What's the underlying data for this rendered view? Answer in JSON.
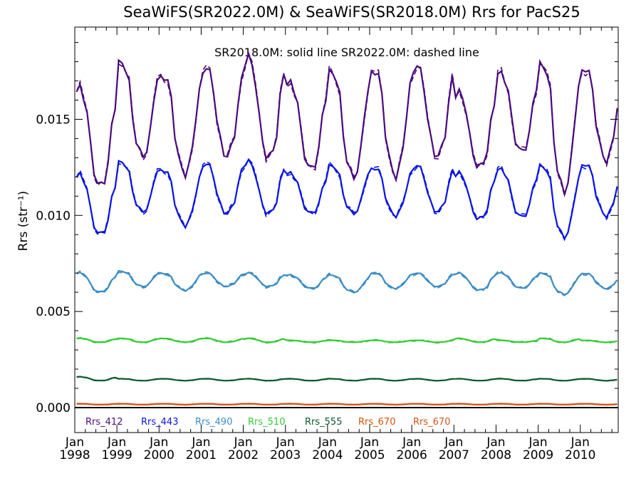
{
  "chart_data": {
    "type": "line",
    "title": "SeaWiFS(SR2022.0M) & SeaWiFS(SR2018.0M)  Rrs for PacS25",
    "subtitle": "SR2018.0M: solid line   SR2022.0M: dashed line",
    "ylabel": "Rrs (str⁻¹)",
    "xlabel": "",
    "xlim": [
      1998.0,
      2010.9
    ],
    "ylim": [
      -0.0013,
      0.0198
    ],
    "yticks": [
      {
        "value": 0.0,
        "label": "0.000"
      },
      {
        "value": 0.005,
        "label": "0.005"
      },
      {
        "value": 0.01,
        "label": "0.010"
      },
      {
        "value": 0.015,
        "label": "0.015"
      }
    ],
    "xticks": [
      {
        "value": 1998,
        "month": "Jan",
        "year": "1998"
      },
      {
        "value": 1999,
        "month": "Jan",
        "year": "1999"
      },
      {
        "value": 2000,
        "month": "Jan",
        "year": "2000"
      },
      {
        "value": 2001,
        "month": "Jan",
        "year": "2001"
      },
      {
        "value": 2002,
        "month": "Jan",
        "year": "2002"
      },
      {
        "value": 2003,
        "month": "Jan",
        "year": "2003"
      },
      {
        "value": 2004,
        "month": "Jan",
        "year": "2004"
      },
      {
        "value": 2005,
        "month": "Jan",
        "year": "2005"
      },
      {
        "value": 2006,
        "month": "Jan",
        "year": "2006"
      },
      {
        "value": 2007,
        "month": "Jan",
        "year": "2007"
      },
      {
        "value": 2008,
        "month": "Jan",
        "year": "2008"
      },
      {
        "value": 2009,
        "month": "Jan",
        "year": "2009"
      },
      {
        "value": 2010,
        "month": "Jan",
        "year": "2010"
      }
    ],
    "grid": false,
    "zero_line": true,
    "legend_placement": "bottom, inside plot",
    "series": [
      {
        "name": "Rrs_412",
        "color": "#4b0a7d",
        "peaks": [
          0.0166,
          0.018,
          0.0173,
          0.0177,
          0.0182,
          0.0169,
          0.0175,
          0.0176,
          0.0178,
          0.0164,
          0.0174,
          0.0179,
          0.0177
        ],
        "troughs": [
          0.0115,
          0.0131,
          0.0122,
          0.0131,
          0.013,
          0.0124,
          0.012,
          0.0121,
          0.0131,
          0.0125,
          0.0133,
          0.0113,
          0.0129
        ]
      },
      {
        "name": "Rrs_443",
        "color": "#0a14e6",
        "peaks": [
          0.0121,
          0.0128,
          0.0124,
          0.0127,
          0.0128,
          0.0122,
          0.0126,
          0.0125,
          0.0126,
          0.0122,
          0.0124,
          0.0126,
          0.0127
        ],
        "troughs": [
          0.009,
          0.0102,
          0.0095,
          0.0101,
          0.0101,
          0.0101,
          0.0101,
          0.01,
          0.0102,
          0.0098,
          0.0099,
          0.0089,
          0.01
        ]
      },
      {
        "name": "Rrs_490",
        "color": "#3a8dc6",
        "peaks": [
          0.007,
          0.0071,
          0.007,
          0.007,
          0.007,
          0.0069,
          0.0069,
          0.007,
          0.007,
          0.007,
          0.007,
          0.007,
          0.007
        ],
        "troughs": [
          0.006,
          0.0063,
          0.0061,
          0.0063,
          0.0063,
          0.0062,
          0.006,
          0.0062,
          0.0063,
          0.0061,
          0.0062,
          0.0059,
          0.0062
        ]
      },
      {
        "name": "Rrs_510",
        "color": "#33cc33",
        "peaks": [
          0.0036,
          0.0036,
          0.0036,
          0.0036,
          0.0036,
          0.0035,
          0.0035,
          0.0035,
          0.0035,
          0.0036,
          0.0035,
          0.0036,
          0.0035
        ],
        "troughs": [
          0.0034,
          0.0034,
          0.0034,
          0.0034,
          0.0034,
          0.0034,
          0.0034,
          0.0034,
          0.0034,
          0.0034,
          0.0034,
          0.0034,
          0.0034
        ]
      },
      {
        "name": "Rrs_555",
        "color": "#0a5a2d",
        "peaks": [
          0.0016,
          0.0015,
          0.0015,
          0.0015,
          0.0015,
          0.0015,
          0.0015,
          0.0015,
          0.0015,
          0.0015,
          0.0015,
          0.0015,
          0.0015
        ],
        "troughs": [
          0.0014,
          0.0014,
          0.0014,
          0.0014,
          0.0014,
          0.0014,
          0.0014,
          0.0014,
          0.0014,
          0.0014,
          0.0014,
          0.0014,
          0.0014
        ]
      },
      {
        "name": "Rrs_670",
        "color": "#d35400",
        "peaks": [
          0.0002,
          0.0002,
          0.0002,
          0.0002,
          0.0002,
          0.0002,
          0.0002,
          0.0002,
          0.0002,
          0.0002,
          0.0002,
          0.0002,
          0.0002
        ],
        "troughs": [
          0.00015,
          0.00015,
          0.00015,
          0.00015,
          0.00015,
          0.00015,
          0.00015,
          0.00015,
          0.00015,
          0.00015,
          0.00015,
          0.00015,
          0.00015
        ]
      },
      {
        "name": "Rrs_670",
        "color": "#d3541a",
        "peaks": [
          0.0002,
          0.0002,
          0.0002,
          0.0002,
          0.0002,
          0.0002,
          0.0002,
          0.0002,
          0.0002,
          0.0002,
          0.0002,
          0.0002,
          0.0002
        ],
        "troughs": [
          0.00015,
          0.00015,
          0.00015,
          0.00015,
          0.00015,
          0.00015,
          0.00015,
          0.00015,
          0.00015,
          0.00015,
          0.00015,
          0.00015,
          0.00015
        ]
      }
    ]
  }
}
